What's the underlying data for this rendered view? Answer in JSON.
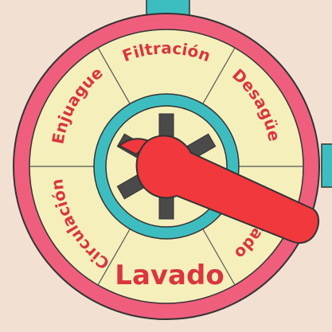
{
  "dial": {
    "segments": [
      {
        "key": "filtracion",
        "label": "Filtración",
        "highlighted": false
      },
      {
        "key": "desague",
        "label": "Desagüe",
        "highlighted": false
      },
      {
        "key": "cerrado",
        "label": "Cerrado",
        "highlighted": false
      },
      {
        "key": "lavado",
        "label": "Lavado",
        "highlighted": true
      },
      {
        "key": "circulacion",
        "label": "Circulación",
        "highlighted": false
      },
      {
        "key": "enjuague",
        "label": "Enjuague",
        "highlighted": false
      }
    ],
    "selected": "Lavado"
  },
  "colors": {
    "background": "#f2e1d2",
    "outer_ring": "#ef5f7d",
    "dial_face": "#f5efbc",
    "inner_ring": "#3ebdc0",
    "label_text": "#d9363e",
    "handle": "#f0383d",
    "gear": "#4a4a4a",
    "pipe": "#3ebdc0",
    "outline": "#333333"
  }
}
